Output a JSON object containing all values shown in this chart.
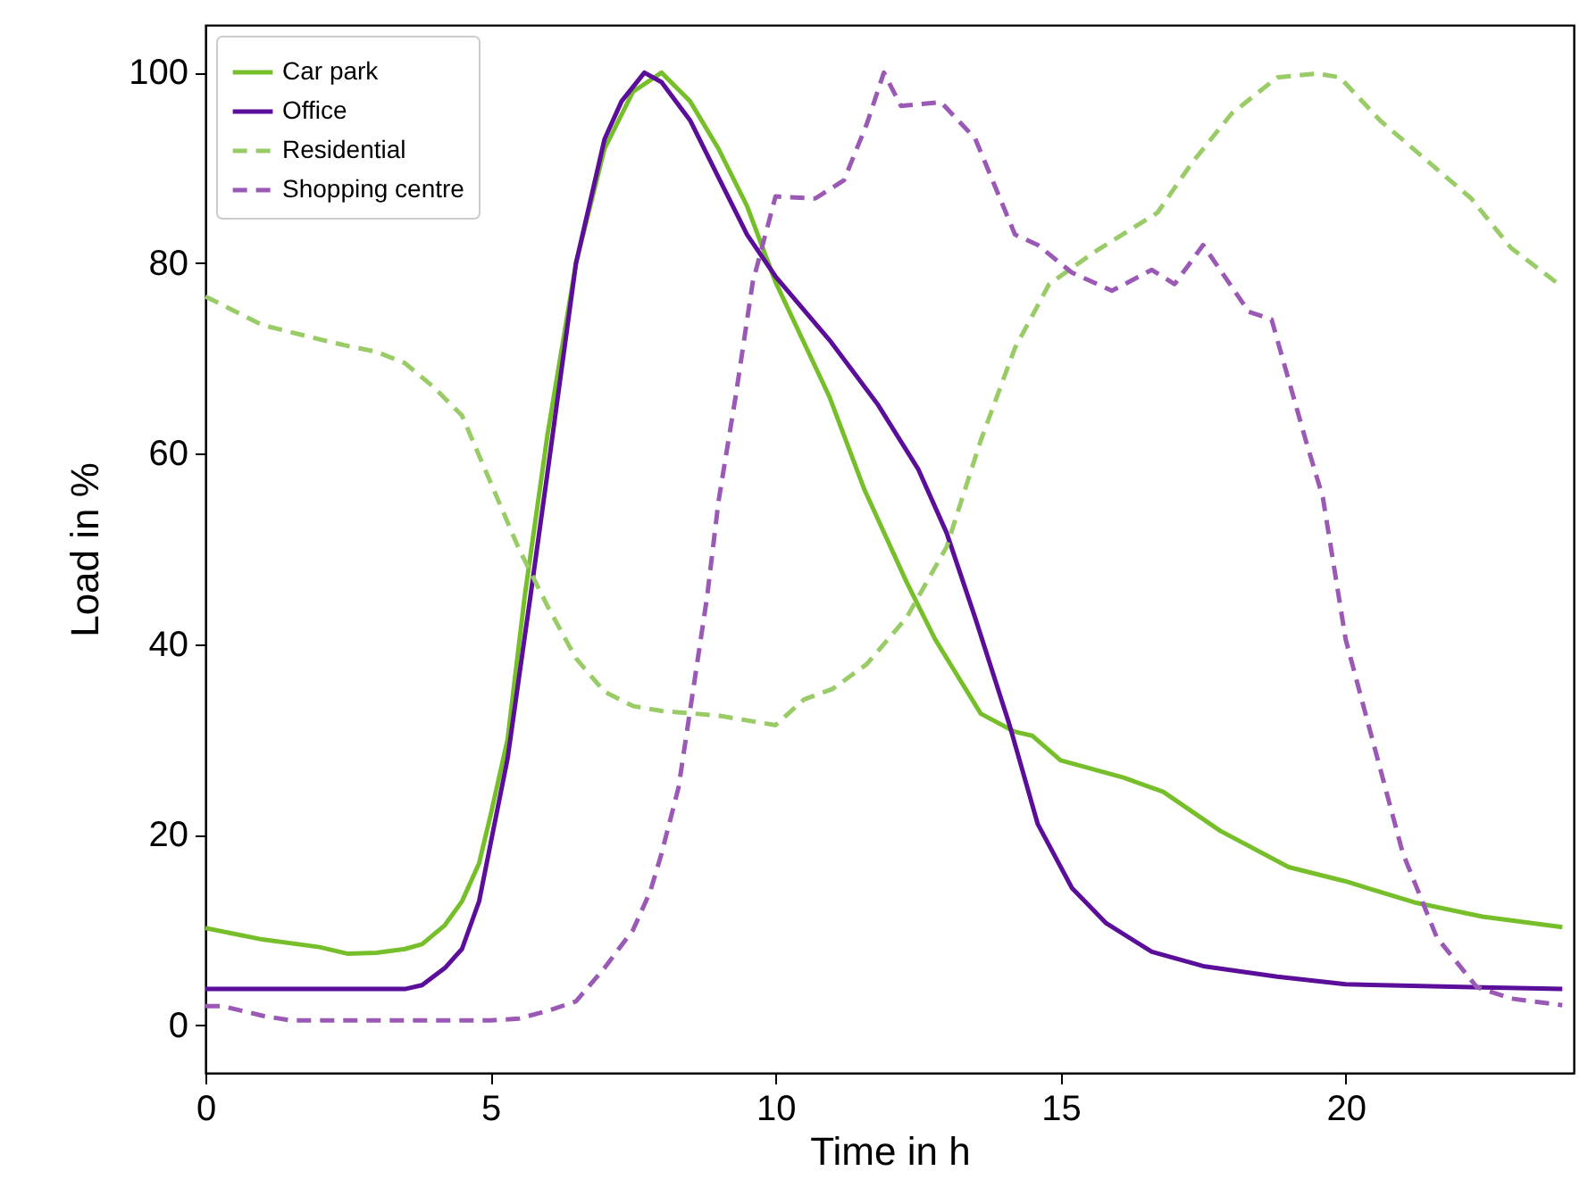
{
  "chart_data": {
    "type": "line",
    "xlabel": "Time in h",
    "ylabel": "Load in %",
    "xlim": [
      0,
      24
    ],
    "ylim": [
      -5,
      105
    ],
    "xticks": [
      0,
      5,
      10,
      15,
      20
    ],
    "yticks": [
      0,
      20,
      40,
      60,
      80,
      100
    ],
    "grid": false,
    "legend": "top left",
    "marker": "none",
    "series": [
      {
        "name": "Car park",
        "color": "#77bf2a",
        "line_style": "solid",
        "x": [
          0,
          1,
          2,
          2.5,
          3,
          3.5,
          3.8,
          4.2,
          4.5,
          4.8,
          5,
          5.3,
          5.6,
          6,
          6.5,
          7,
          7.5,
          8,
          8.5,
          9,
          9.5,
          10,
          10.95,
          11.56,
          12.3,
          12.8,
          13.6,
          14.2,
          14.5,
          15,
          16.1,
          16.8,
          17.8,
          19,
          20,
          21.2,
          22.4,
          23.8
        ],
        "values": [
          10.2,
          9,
          8.2,
          7.5,
          7.6,
          8,
          8.5,
          10.5,
          13,
          17,
          22,
          30,
          45,
          62,
          80,
          92,
          98,
          100,
          97,
          92,
          86,
          78,
          65.9,
          56.2,
          46.5,
          40.5,
          32.7,
          30.8,
          30.4,
          27.8,
          26,
          24.5,
          20.4,
          16.6,
          15.1,
          12.9,
          11.4,
          10.3
        ]
      },
      {
        "name": "Office",
        "color": "#5b0e99",
        "line_style": "solid",
        "x": [
          0,
          3.5,
          3.8,
          4.2,
          4.5,
          4.8,
          5,
          5.3,
          5.7,
          6,
          6.5,
          7,
          7.3,
          7.7,
          8,
          8.5,
          9,
          9.5,
          10,
          10.95,
          11.8,
          12.5,
          13,
          13.5,
          14.1,
          14.6,
          15.2,
          15.8,
          16.6,
          17.5,
          18.8,
          20,
          22.2,
          23.8
        ],
        "values": [
          3.8,
          3.8,
          4.2,
          6,
          8,
          13,
          19,
          28,
          45,
          58,
          80,
          93,
          97,
          100,
          99,
          95,
          89,
          83,
          78.6,
          71.9,
          65.1,
          58.4,
          51.7,
          42.8,
          31.6,
          21.1,
          14.4,
          10.7,
          7.7,
          6.2,
          5.1,
          4.3,
          4,
          3.8
        ]
      },
      {
        "name": "Residential",
        "color": "#99cc66",
        "line_style": "dashed",
        "x": [
          0,
          0.5,
          1,
          2,
          2.5,
          3,
          3.5,
          4,
          4.5,
          5,
          5.5,
          6,
          6.5,
          7,
          7.5,
          8,
          9,
          9.5,
          10,
          10.5,
          11,
          11.6,
          12.3,
          13,
          13.6,
          14.2,
          14.8,
          15.6,
          16.7,
          17.3,
          18,
          18.8,
          19.5,
          19.9,
          20.6,
          21.4,
          22.2,
          22.9,
          23.8
        ],
        "values": [
          76.5,
          75,
          73.5,
          72,
          71.3,
          70.7,
          69.5,
          67,
          64,
          57,
          50,
          44,
          38.5,
          35,
          33.5,
          33,
          32.5,
          32,
          31.5,
          34.2,
          35.3,
          37.9,
          42.8,
          50.2,
          61.4,
          71.1,
          77.8,
          81.2,
          85.3,
          90.5,
          95.7,
          99.5,
          99.9,
          99.5,
          95,
          90.9,
          86.8,
          81.6,
          77.5
        ]
      },
      {
        "name": "Shopping centre",
        "color": "#9b59b6",
        "line_style": "dashed",
        "x": [
          0,
          0.3,
          1,
          1.5,
          2,
          3,
          4,
          5,
          5.5,
          6,
          6.5,
          7,
          7.5,
          7.8,
          8,
          8.3,
          8.5,
          8.8,
          9,
          9.3,
          9.6,
          10,
          10.7,
          11.2,
          11.6,
          11.9,
          12.2,
          12.9,
          13.5,
          14.2,
          14.6,
          15.2,
          15.9,
          16.6,
          17,
          17.5,
          18.3,
          18.7,
          19.3,
          19.6,
          20,
          20.5,
          21,
          21.6,
          22.3,
          22.9,
          23.8
        ],
        "values": [
          2,
          2,
          1,
          0.5,
          0.5,
          0.5,
          0.5,
          0.5,
          0.7,
          1.5,
          2.5,
          6,
          10,
          14,
          18,
          25,
          33,
          45,
          55,
          66,
          78,
          87,
          86.8,
          88.7,
          94.6,
          100,
          96.5,
          96.9,
          93.1,
          83,
          81.9,
          79,
          77.1,
          79.3,
          77.8,
          81.9,
          74.9,
          74.1,
          61.4,
          55.4,
          40.5,
          29.3,
          18.1,
          9.2,
          4,
          2.8,
          2.1
        ]
      }
    ]
  }
}
